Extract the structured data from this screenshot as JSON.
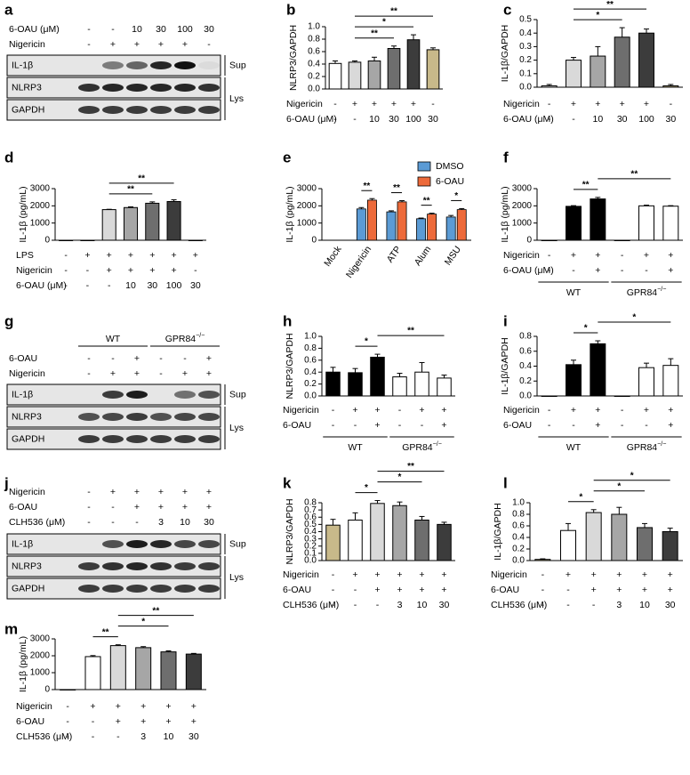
{
  "chart_data": [
    {
      "panel": "b",
      "type": "bar",
      "ylabel": "NLRP3/GAPDH",
      "ylim": [
        0,
        1
      ],
      "yticks": [
        {
          "value": 0,
          "label": "0.0"
        },
        0.2,
        0.4,
        0.6,
        0.8,
        {
          "value": 1,
          "label": "1.0"
        }
      ],
      "values": [
        0.41,
        0.43,
        0.45,
        0.65,
        0.79,
        0.63
      ],
      "errors": [
        0.04,
        0.02,
        0.06,
        0.04,
        0.08,
        0.03
      ],
      "colors": [
        "#ffffff",
        "#d9d9d9",
        "#a6a6a6",
        "#6e6e6e",
        "#3c3c3c",
        "#c8b98a"
      ],
      "conditions": [
        {
          "label": "Nigericin",
          "marks": [
            "-",
            "+",
            "+",
            "+",
            "+",
            "-"
          ]
        },
        {
          "label": "6-OAU (μM)",
          "marks": [
            "-",
            "-",
            "10",
            "30",
            "100",
            "30"
          ]
        }
      ],
      "comparisons": [
        {
          "from": 1,
          "to": 3,
          "label": "**"
        },
        {
          "from": 1,
          "to": 4,
          "label": "*"
        },
        {
          "from": 1,
          "to": 5,
          "label": "**"
        }
      ]
    },
    {
      "panel": "c",
      "type": "bar",
      "ylabel": "IL-1β/GAPDH",
      "ylim": [
        0,
        0.5
      ],
      "yticks": [
        {
          "value": 0,
          "label": "0.0"
        },
        0.1,
        0.2,
        0.3,
        0.4,
        0.5
      ],
      "values": [
        0.01,
        0.2,
        0.23,
        0.37,
        0.4,
        0.01
      ],
      "errors": [
        0.01,
        0.02,
        0.07,
        0.07,
        0.03,
        0.01
      ],
      "colors": [
        "#ffffff",
        "#d9d9d9",
        "#a6a6a6",
        "#6e6e6e",
        "#3c3c3c",
        "#c8b98a"
      ],
      "conditions": [
        {
          "label": "Nigericin",
          "marks": [
            "-",
            "+",
            "+",
            "+",
            "+",
            "-"
          ]
        },
        {
          "label": "6-OAU (μM)",
          "marks": [
            "-",
            "-",
            "10",
            "30",
            "100",
            "30"
          ]
        }
      ],
      "comparisons": [
        {
          "from": 1,
          "to": 3,
          "label": "*"
        },
        {
          "from": 1,
          "to": 4,
          "label": "**"
        }
      ]
    },
    {
      "panel": "d",
      "type": "bar",
      "ylabel": "IL-1β (pg/mL)",
      "ylim": [
        0,
        3000
      ],
      "yticks": [
        0,
        1000,
        2000,
        3000
      ],
      "values": [
        0,
        0,
        1780,
        1900,
        2150,
        2250,
        0
      ],
      "errors": [
        0,
        0,
        20,
        40,
        80,
        100,
        0
      ],
      "colors": [
        "#ffffff",
        "#ffffff",
        "#d9d9d9",
        "#a6a6a6",
        "#6e6e6e",
        "#3c3c3c",
        "#c8b98a"
      ],
      "conditions": [
        {
          "label": "LPS",
          "marks": [
            "-",
            "+",
            "+",
            "+",
            "+",
            "+",
            "+"
          ]
        },
        {
          "label": "Nigericin",
          "marks": [
            "-",
            "-",
            "+",
            "+",
            "+",
            "+",
            "-"
          ]
        },
        {
          "label": "6-OAU (μM)",
          "marks": [
            "-",
            "-",
            "-",
            "10",
            "30",
            "100",
            "30"
          ]
        }
      ],
      "comparisons": [
        {
          "from": 2,
          "to": 4,
          "label": "**"
        },
        {
          "from": 2,
          "to": 5,
          "label": "**"
        }
      ]
    },
    {
      "panel": "e",
      "type": "bar",
      "ylabel": "IL-1β (pg/mL)",
      "ylim": [
        0,
        3000
      ],
      "yticks": [
        0,
        1000,
        2000,
        3000
      ],
      "categories": [
        "Mock",
        "Nigericin",
        "ATP",
        "Alum",
        "MSU"
      ],
      "series": [
        {
          "name": "DMSO",
          "color": "#5b9bd5",
          "values": [
            0,
            1820,
            1650,
            1250,
            1350
          ],
          "errors": [
            0,
            80,
            60,
            40,
            90
          ]
        },
        {
          "name": "6-OAU",
          "color": "#ed6a3a",
          "values": [
            0,
            2330,
            2230,
            1520,
            1780
          ],
          "errors": [
            0,
            90,
            70,
            50,
            60
          ]
        }
      ],
      "comparisons": [
        {
          "category": 1,
          "label": "**"
        },
        {
          "category": 2,
          "label": "**"
        },
        {
          "category": 3,
          "label": "**"
        },
        {
          "category": 4,
          "label": "*"
        }
      ]
    },
    {
      "panel": "f",
      "type": "bar",
      "ylabel": "IL-1β (pg/mL)",
      "ylim": [
        0,
        3000
      ],
      "yticks": [
        0,
        1000,
        2000,
        3000
      ],
      "values": [
        0,
        1970,
        2400,
        0,
        2000,
        1980
      ],
      "errors": [
        0,
        40,
        90,
        0,
        40,
        30
      ],
      "colors": [
        "#000000",
        "#000000",
        "#000000",
        "#ffffff",
        "#ffffff",
        "#ffffff"
      ],
      "conditions": [
        {
          "label": "Nigericin",
          "marks": [
            "-",
            "+",
            "+",
            "-",
            "+",
            "+"
          ]
        },
        {
          "label": "6-OAU (μM)",
          "marks": [
            "-",
            "-",
            "+",
            "-",
            "-",
            "+"
          ]
        }
      ],
      "groups": [
        {
          "name": "WT",
          "from": 0,
          "to": 2
        },
        {
          "name": "GPR84",
          "sup": "−/−",
          "from": 3,
          "to": 5
        }
      ],
      "comparisons": [
        {
          "from": 1,
          "to": 2,
          "label": "**"
        },
        {
          "from": 2,
          "to": 5,
          "label": "**"
        }
      ]
    },
    {
      "panel": "h",
      "type": "bar",
      "ylabel": "NLRP3/GAPDH",
      "ylim": [
        0,
        1
      ],
      "yticks": [
        {
          "value": 0,
          "label": "0.0"
        },
        0.2,
        0.4,
        0.6,
        0.8,
        {
          "value": 1,
          "label": "1.0"
        }
      ],
      "values": [
        0.4,
        0.39,
        0.65,
        0.32,
        0.4,
        0.3
      ],
      "errors": [
        0.08,
        0.07,
        0.05,
        0.06,
        0.16,
        0.05
      ],
      "colors": [
        "#000000",
        "#000000",
        "#000000",
        "#ffffff",
        "#ffffff",
        "#ffffff"
      ],
      "conditions": [
        {
          "label": "Nigericin",
          "marks": [
            "-",
            "+",
            "+",
            "-",
            "+",
            "+"
          ]
        },
        {
          "label": "6-OAU",
          "marks": [
            "-",
            "-",
            "+",
            "-",
            "-",
            "+"
          ]
        }
      ],
      "groups": [
        {
          "name": "WT",
          "from": 0,
          "to": 2
        },
        {
          "name": "GPR84",
          "sup": "−/−",
          "from": 3,
          "to": 5
        }
      ],
      "comparisons": [
        {
          "from": 1,
          "to": 2,
          "label": "*"
        },
        {
          "from": 2,
          "to": 5,
          "label": "**"
        }
      ]
    },
    {
      "panel": "i",
      "type": "bar",
      "ylabel": "IL-1β/GAPDH",
      "ylim": [
        0,
        0.8
      ],
      "yticks": [
        {
          "value": 0,
          "label": "0.0"
        },
        0.2,
        0.4,
        0.6,
        0.8
      ],
      "values": [
        0,
        0.42,
        0.7,
        0,
        0.38,
        0.41
      ],
      "errors": [
        0,
        0.06,
        0.04,
        0,
        0.06,
        0.09
      ],
      "colors": [
        "#000000",
        "#000000",
        "#000000",
        "#ffffff",
        "#ffffff",
        "#ffffff"
      ],
      "conditions": [
        {
          "label": "Nigericin",
          "marks": [
            "-",
            "+",
            "+",
            "-",
            "+",
            "+"
          ]
        },
        {
          "label": "6-OAU",
          "marks": [
            "-",
            "-",
            "+",
            "-",
            "-",
            "+"
          ]
        }
      ],
      "groups": [
        {
          "name": "WT",
          "from": 0,
          "to": 2
        },
        {
          "name": "GPR84",
          "sup": "−/−",
          "from": 3,
          "to": 5
        }
      ],
      "comparisons": [
        {
          "from": 1,
          "to": 2,
          "label": "*"
        },
        {
          "from": 2,
          "to": 5,
          "label": "*"
        }
      ]
    },
    {
      "panel": "k",
      "type": "bar",
      "ylabel": "NLRP3/GAPDH",
      "ylim": [
        0,
        0.8
      ],
      "yticks": [
        {
          "value": 0,
          "label": "0.0"
        },
        0.1,
        0.2,
        0.3,
        0.4,
        0.5,
        0.6,
        0.7,
        0.8
      ],
      "values": [
        0.49,
        0.56,
        0.79,
        0.76,
        0.56,
        0.5
      ],
      "errors": [
        0.08,
        0.1,
        0.04,
        0.05,
        0.05,
        0.03
      ],
      "colors": [
        "#c8b98a",
        "#ffffff",
        "#d9d9d9",
        "#a6a6a6",
        "#6e6e6e",
        "#3c3c3c"
      ],
      "conditions": [
        {
          "label": "Nigericin",
          "marks": [
            "-",
            "+",
            "+",
            "+",
            "+",
            "+"
          ]
        },
        {
          "label": "6-OAU",
          "marks": [
            "-",
            "-",
            "+",
            "+",
            "+",
            "+"
          ]
        },
        {
          "label": "CLH536 (μM)",
          "marks": [
            "-",
            "-",
            "-",
            "3",
            "10",
            "30"
          ]
        }
      ],
      "comparisons": [
        {
          "from": 1,
          "to": 2,
          "label": "*"
        },
        {
          "from": 2,
          "to": 4,
          "label": "*"
        },
        {
          "from": 2,
          "to": 5,
          "label": "**"
        }
      ]
    },
    {
      "panel": "l",
      "type": "bar",
      "ylabel": "IL-1β/GAPDH",
      "ylim": [
        0,
        1
      ],
      "yticks": [
        {
          "value": 0,
          "label": "0.0"
        },
        0.2,
        0.4,
        0.6,
        0.8,
        {
          "value": 1,
          "label": "1.0"
        }
      ],
      "values": [
        0.02,
        0.52,
        0.83,
        0.8,
        0.57,
        0.5
      ],
      "errors": [
        0.01,
        0.12,
        0.05,
        0.12,
        0.07,
        0.06
      ],
      "colors": [
        "#c8b98a",
        "#ffffff",
        "#d9d9d9",
        "#a6a6a6",
        "#6e6e6e",
        "#3c3c3c"
      ],
      "conditions": [
        {
          "label": "Nigericin",
          "marks": [
            "-",
            "+",
            "+",
            "+",
            "+",
            "+"
          ]
        },
        {
          "label": "6-OAU",
          "marks": [
            "-",
            "-",
            "+",
            "+",
            "+",
            "+"
          ]
        },
        {
          "label": "CLH536 (μM)",
          "marks": [
            "-",
            "-",
            "-",
            "3",
            "10",
            "30"
          ]
        }
      ],
      "comparisons": [
        {
          "from": 1,
          "to": 2,
          "label": "*"
        },
        {
          "from": 2,
          "to": 4,
          "label": "*"
        },
        {
          "from": 2,
          "to": 5,
          "label": "*"
        }
      ]
    },
    {
      "panel": "m",
      "type": "bar",
      "ylabel": "IL-1β (pg/mL)",
      "ylim": [
        0,
        3000
      ],
      "yticks": [
        0,
        1000,
        2000,
        3000
      ],
      "values": [
        0,
        1950,
        2600,
        2480,
        2230,
        2100
      ],
      "errors": [
        0,
        60,
        50,
        60,
        60,
        40
      ],
      "colors": [
        "#ffffff",
        "#ffffff",
        "#d9d9d9",
        "#a6a6a6",
        "#6e6e6e",
        "#3c3c3c"
      ],
      "conditions": [
        {
          "label": "Nigericin",
          "marks": [
            "-",
            "+",
            "+",
            "+",
            "+",
            "+"
          ]
        },
        {
          "label": "6-OAU",
          "marks": [
            "-",
            "-",
            "+",
            "+",
            "+",
            "+"
          ]
        },
        {
          "label": "CLH536 (μM)",
          "marks": [
            "-",
            "-",
            "-",
            "3",
            "10",
            "30"
          ]
        }
      ],
      "comparisons": [
        {
          "from": 1,
          "to": 2,
          "label": "**"
        },
        {
          "from": 2,
          "to": 4,
          "label": "*"
        },
        {
          "from": 2,
          "to": 5,
          "label": "**"
        }
      ]
    }
  ],
  "blots": [
    {
      "panel": "a",
      "conditions": [
        {
          "label": "6-OAU (μM)",
          "marks": [
            "-",
            "-",
            "10",
            "30",
            "100",
            "30"
          ]
        },
        {
          "label": "Nigericin",
          "marks": [
            "-",
            "+",
            "+",
            "+",
            "+",
            "-"
          ]
        }
      ],
      "sections": [
        {
          "label": "Sup",
          "bands": [
            "IL-1β"
          ]
        },
        {
          "label": "Lys",
          "bands": [
            "NLRP3",
            "GAPDH"
          ]
        }
      ]
    },
    {
      "panel": "g",
      "groups": [
        {
          "name": "WT",
          "from": 0,
          "to": 2
        },
        {
          "name": "GPR84",
          "sup": "−/−",
          "from": 3,
          "to": 5
        }
      ],
      "conditions": [
        {
          "label": "6-OAU",
          "marks": [
            "-",
            "-",
            "+",
            "-",
            "-",
            "+"
          ]
        },
        {
          "label": "Nigericin",
          "marks": [
            "-",
            "+",
            "+",
            "-",
            "+",
            "+"
          ]
        }
      ],
      "sections": [
        {
          "label": "Sup",
          "bands": [
            "IL-1β"
          ]
        },
        {
          "label": "Lys",
          "bands": [
            "NLRP3",
            "GAPDH"
          ]
        }
      ]
    },
    {
      "panel": "j",
      "conditions": [
        {
          "label": "Nigericin",
          "marks": [
            "-",
            "+",
            "+",
            "+",
            "+",
            "+"
          ]
        },
        {
          "label": "6-OAU",
          "marks": [
            "-",
            "-",
            "+",
            "+",
            "+",
            "+"
          ]
        },
        {
          "label": "CLH536 (μM)",
          "marks": [
            "-",
            "-",
            "-",
            "3",
            "10",
            "30"
          ]
        }
      ],
      "sections": [
        {
          "label": "Sup",
          "bands": [
            "IL-1β"
          ]
        },
        {
          "label": "Lys",
          "bands": [
            "NLRP3",
            "GAPDH"
          ]
        }
      ]
    }
  ]
}
